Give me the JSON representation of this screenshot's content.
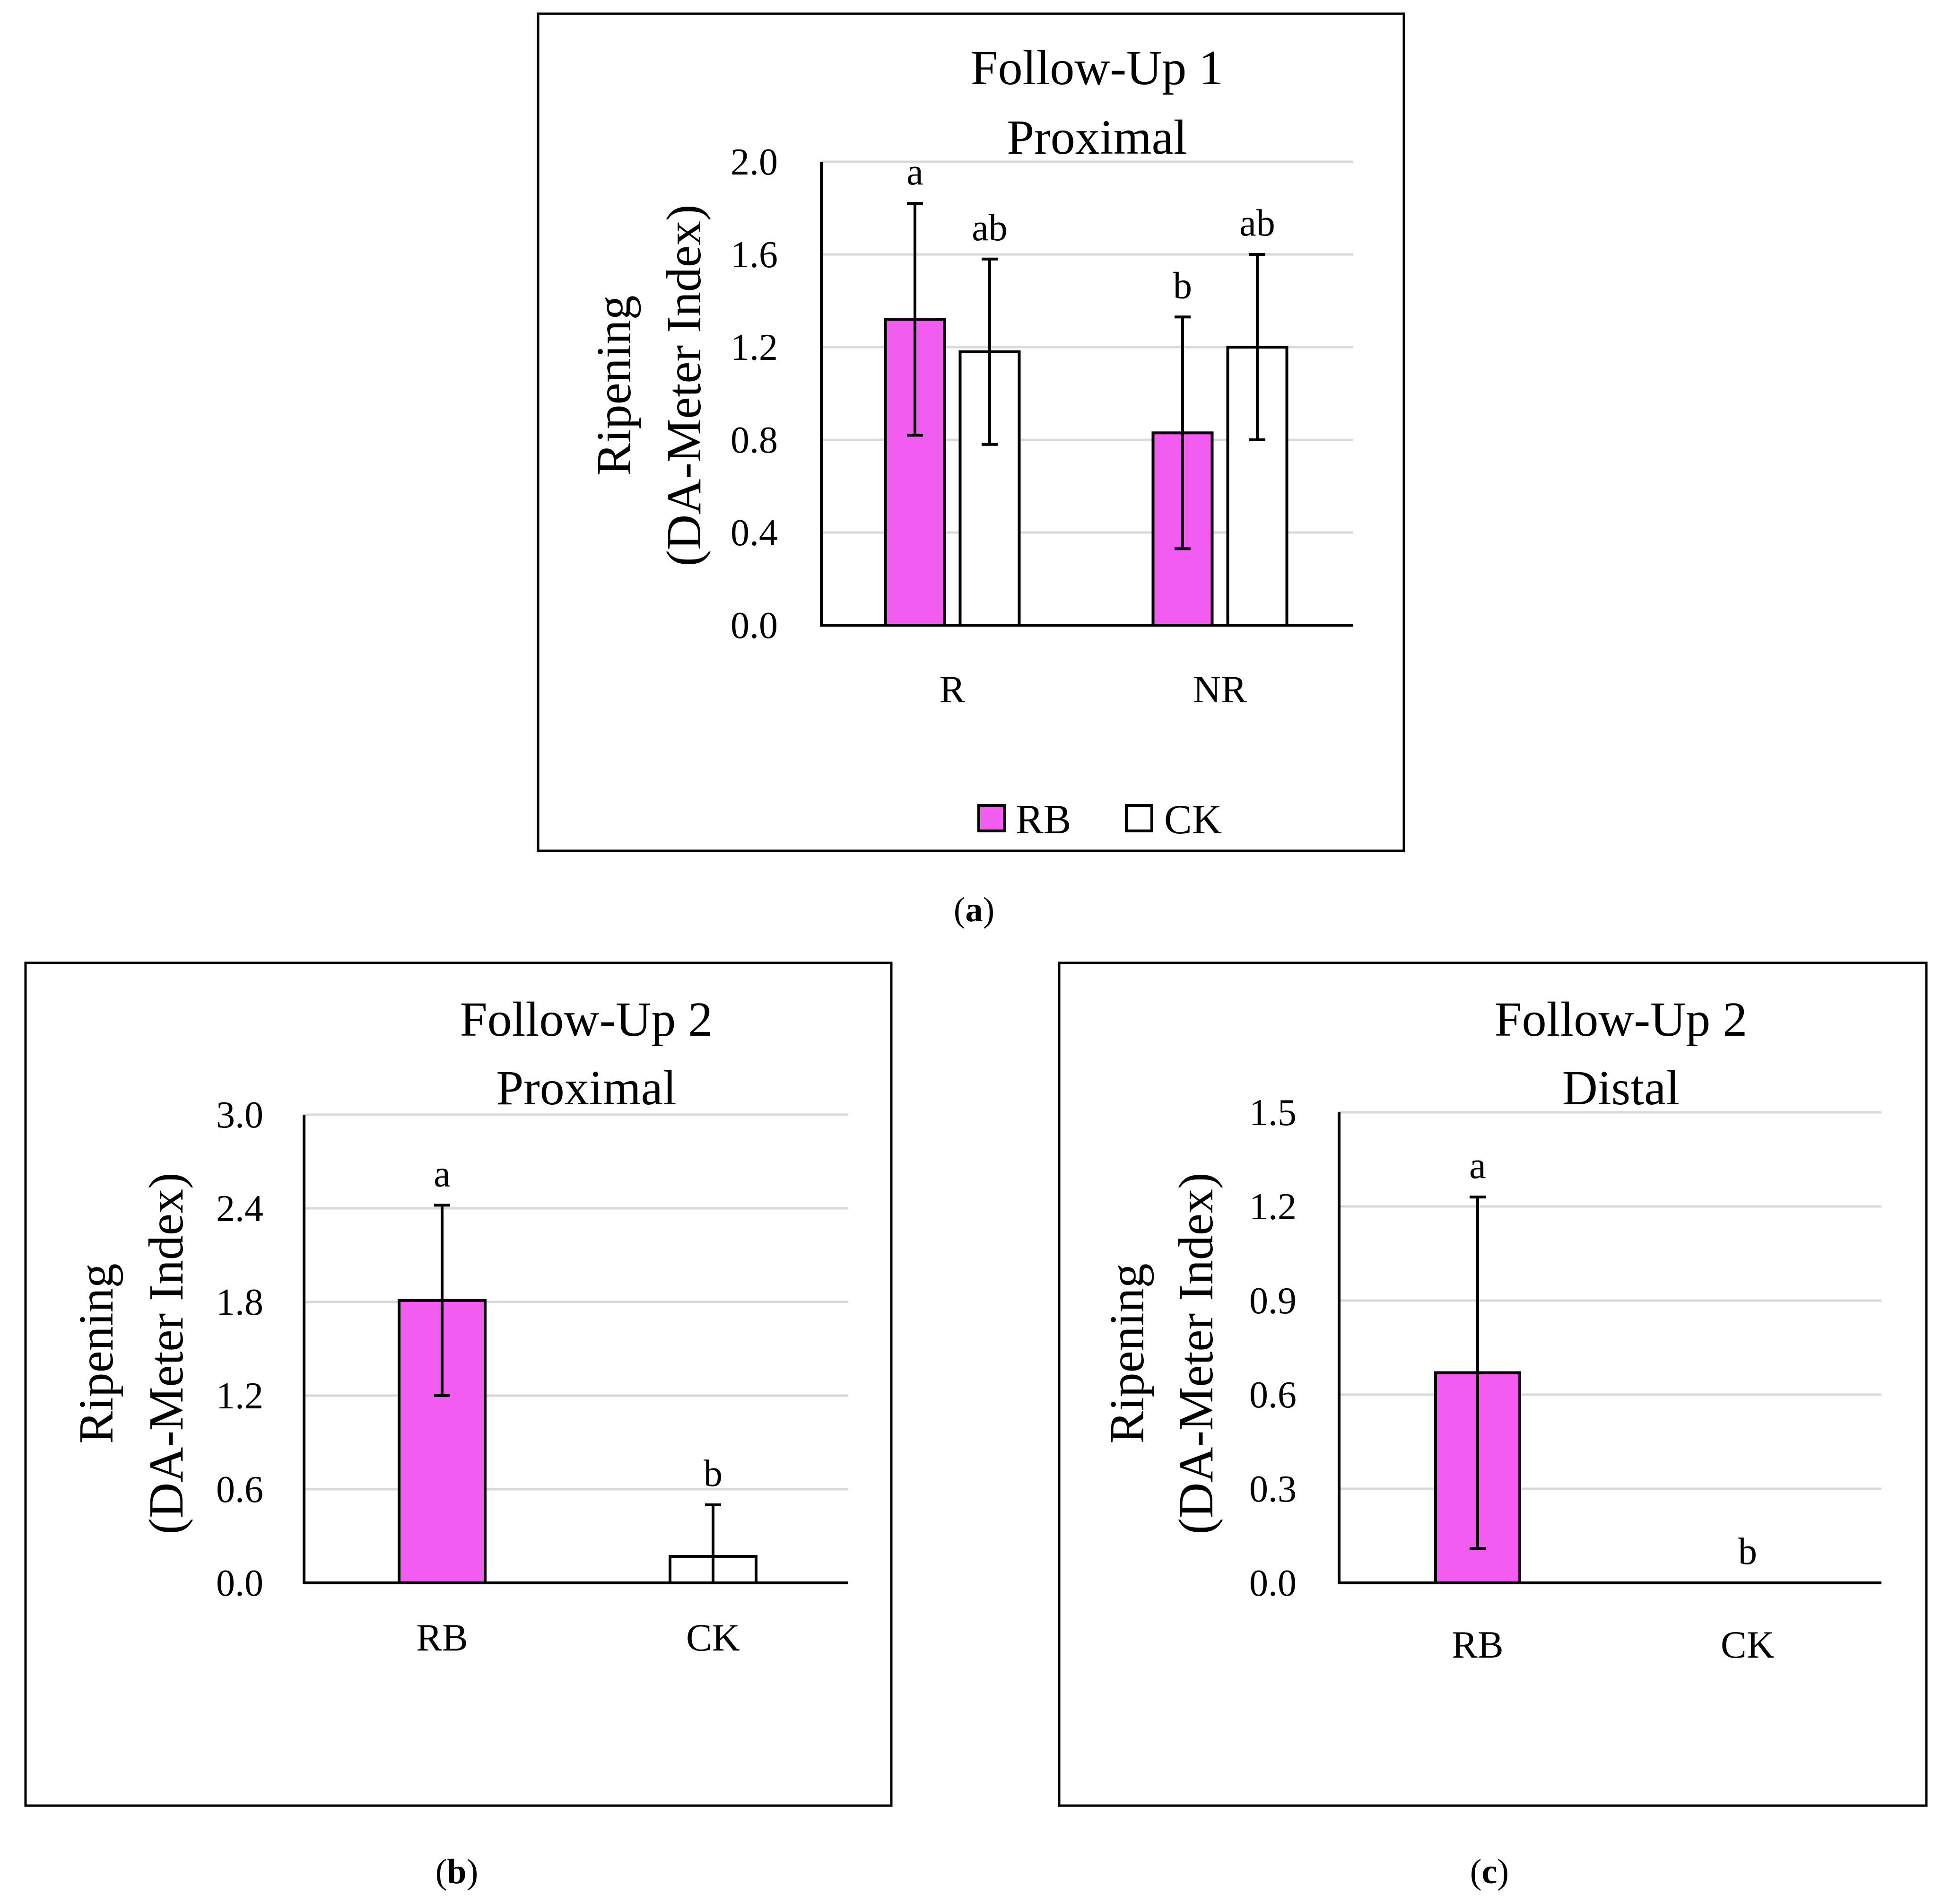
{
  "colors": {
    "RB": "#f25cf0",
    "CK": "#ffffff"
  },
  "chart_data": [
    {
      "type": "bar",
      "panel_label": "a",
      "title": [
        "Follow-Up 1",
        "Proximal"
      ],
      "ylabel": [
        "Ripening",
        "(DA-Meter Index)"
      ],
      "xlabel": "",
      "categories": [
        "R",
        "NR"
      ],
      "series": [
        {
          "name": "RB",
          "color": "#f25cf0",
          "values": [
            1.32,
            0.83
          ],
          "errors": [
            0.5,
            0.5
          ],
          "letters": [
            "a",
            "b"
          ]
        },
        {
          "name": "CK",
          "color": "#ffffff",
          "values": [
            1.18,
            1.2
          ],
          "errors": [
            0.4,
            0.4
          ],
          "letters": [
            "ab",
            "ab"
          ]
        }
      ],
      "ylim": [
        0,
        2.0
      ],
      "yticks": [
        "0.0",
        "0.4",
        "0.8",
        "1.2",
        "1.6",
        "2.0"
      ],
      "grid": true,
      "legend": [
        "RB",
        "CK"
      ],
      "legend_position": "bottom-center"
    },
    {
      "type": "bar",
      "panel_label": "b",
      "title": [
        "Follow-Up 2",
        "Proximal"
      ],
      "ylabel": [
        "Ripening",
        "(DA-Meter Index)"
      ],
      "xlabel": "",
      "categories": [
        "RB",
        "CK"
      ],
      "values": [
        1.81,
        0.17
      ],
      "errors": [
        0.61,
        0.33
      ],
      "letters": [
        "a",
        "b"
      ],
      "bar_colors": [
        "#f25cf0",
        "#ffffff"
      ],
      "ylim": [
        0,
        3.0
      ],
      "yticks": [
        "0.0",
        "0.6",
        "1.2",
        "1.8",
        "2.4",
        "3.0"
      ],
      "grid": true
    },
    {
      "type": "bar",
      "panel_label": "c",
      "title": [
        "Follow-Up 2",
        "Distal"
      ],
      "ylabel": [
        "Ripening",
        "(DA-Meter Index)"
      ],
      "xlabel": "",
      "categories": [
        "RB",
        "CK"
      ],
      "values": [
        0.67,
        0.0
      ],
      "errors": [
        0.56,
        0.0
      ],
      "letters": [
        "a",
        "b"
      ],
      "bar_colors": [
        "#f25cf0",
        "#ffffff"
      ],
      "ylim": [
        0,
        1.5
      ],
      "yticks": [
        "0.0",
        "0.3",
        "0.6",
        "0.9",
        "1.2",
        "1.5"
      ],
      "grid": true
    }
  ]
}
